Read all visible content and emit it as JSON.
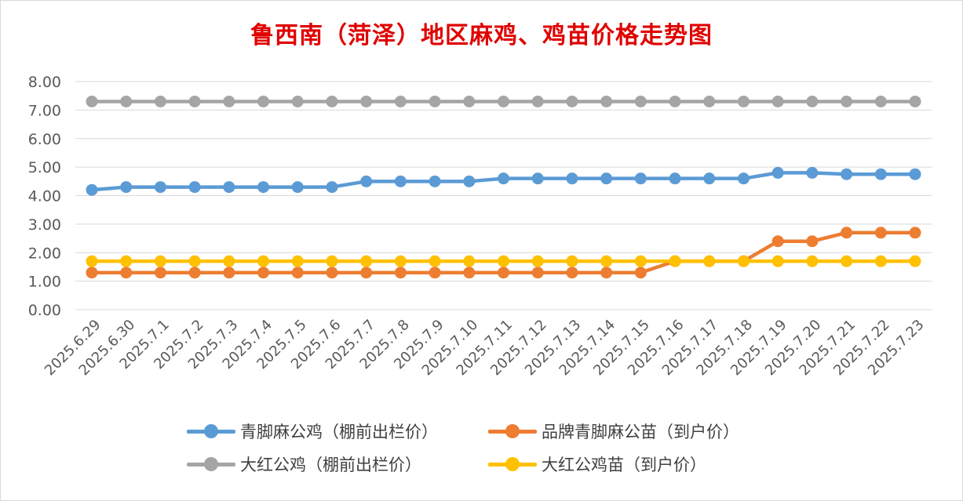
{
  "title": "鲁西南（菏泽）地区麻鸡、鸡苗价格走势图",
  "chart_data": {
    "type": "line",
    "title": "鲁西南（菏泽）地区麻鸡、鸡苗价格走势图",
    "xlabel": "",
    "ylabel": "",
    "ylim": [
      0,
      8
    ],
    "yticks": [
      "0.00",
      "1.00",
      "2.00",
      "3.00",
      "4.00",
      "5.00",
      "6.00",
      "7.00",
      "8.00"
    ],
    "grid": true,
    "legend_position": "bottom",
    "categories": [
      "2025.6.29",
      "2025.6.30",
      "2025.7.1",
      "2025.7.2",
      "2025.7.3",
      "2025.7.4",
      "2025.7.5",
      "2025.7.6",
      "2025.7.7",
      "2025.7.8",
      "2025.7.9",
      "2025.7.10",
      "2025.7.11",
      "2025.7.12",
      "2025.7.13",
      "2025.7.14",
      "2025.7.15",
      "2025.7.16",
      "2025.7.17",
      "2025.7.18",
      "2025.7.19",
      "2025.7.20",
      "2025.7.21",
      "2025.7.22",
      "2025.7.23"
    ],
    "series": [
      {
        "name": "青脚麻公鸡（棚前出栏价）",
        "color": "#5b9bd5",
        "values": [
          4.2,
          4.3,
          4.3,
          4.3,
          4.3,
          4.3,
          4.3,
          4.3,
          4.5,
          4.5,
          4.5,
          4.5,
          4.6,
          4.6,
          4.6,
          4.6,
          4.6,
          4.6,
          4.6,
          4.6,
          4.8,
          4.8,
          4.75,
          4.75,
          4.75
        ]
      },
      {
        "name": "品牌青脚麻公苗（到户价）",
        "color": "#ed7d31",
        "values": [
          1.3,
          1.3,
          1.3,
          1.3,
          1.3,
          1.3,
          1.3,
          1.3,
          1.3,
          1.3,
          1.3,
          1.3,
          1.3,
          1.3,
          1.3,
          1.3,
          1.3,
          1.7,
          1.7,
          1.7,
          2.4,
          2.4,
          2.7,
          2.7,
          2.7
        ]
      },
      {
        "name": "大红公鸡（棚前出栏价）",
        "color": "#a5a5a5",
        "values": [
          7.3,
          7.3,
          7.3,
          7.3,
          7.3,
          7.3,
          7.3,
          7.3,
          7.3,
          7.3,
          7.3,
          7.3,
          7.3,
          7.3,
          7.3,
          7.3,
          7.3,
          7.3,
          7.3,
          7.3,
          7.3,
          7.3,
          7.3,
          7.3,
          7.3
        ]
      },
      {
        "name": "大红公鸡苗（到户价）",
        "color": "#ffc000",
        "values": [
          1.7,
          1.7,
          1.7,
          1.7,
          1.7,
          1.7,
          1.7,
          1.7,
          1.7,
          1.7,
          1.7,
          1.7,
          1.7,
          1.7,
          1.7,
          1.7,
          1.7,
          1.7,
          1.7,
          1.7,
          1.7,
          1.7,
          1.7,
          1.7,
          1.7
        ]
      }
    ]
  }
}
